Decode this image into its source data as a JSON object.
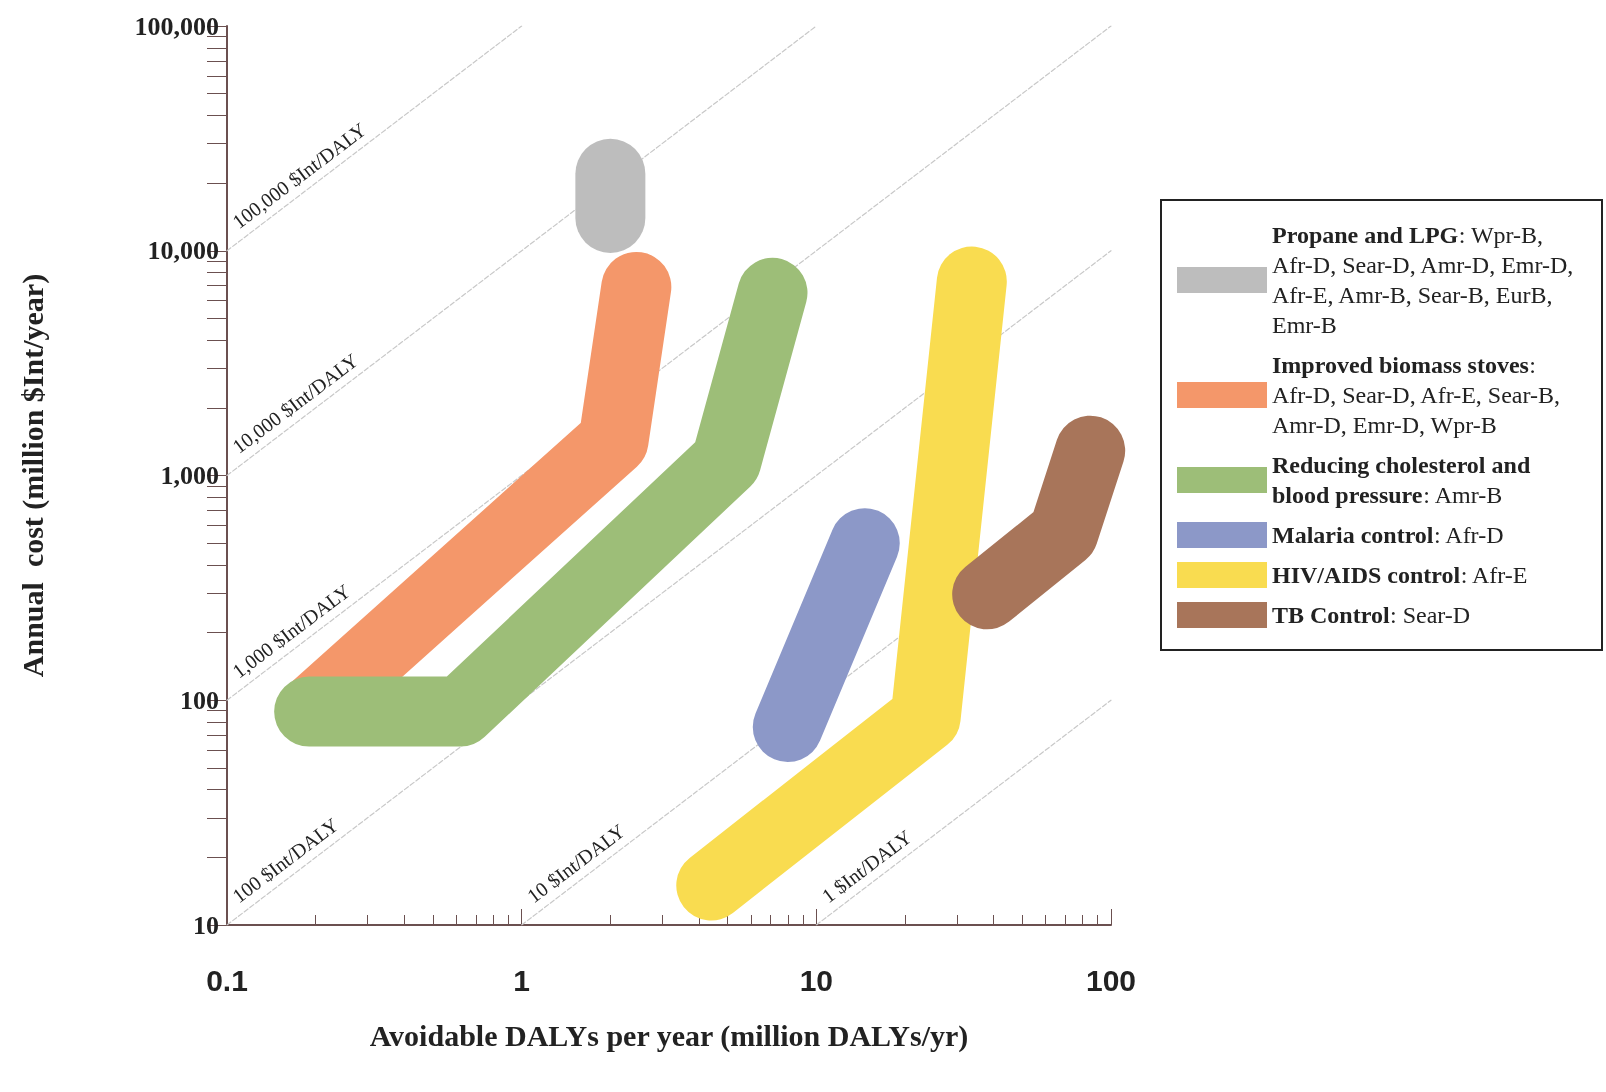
{
  "chart_data": {
    "type": "line",
    "xlabel": "Avoidable DALYs per year (million DALYs/yr)",
    "ylabel": "Annual  cost (million $Int/year)",
    "log": "xy",
    "grid": false,
    "legend": "right",
    "xlim": [
      0.1,
      100
    ],
    "xticks": [
      0.1,
      1,
      10,
      100
    ],
    "ylim": [
      10,
      100000
    ],
    "yticks": [
      10,
      100,
      {
        "value": 1000,
        "label": "1,000"
      },
      {
        "value": 10000,
        "label": "10,000"
      },
      {
        "value": 100000,
        "label": "100,000"
      }
    ],
    "series": [
      {
        "name": "100,000 $Int/DALY",
        "color": "#c8c8c8",
        "line_style": "dashed",
        "x": [
          0.1,
          1
        ],
        "values": [
          10000,
          100000
        ]
      },
      {
        "name": "10,000 $Int/DALY",
        "color": "#c8c8c8",
        "line_style": "dashed",
        "x": [
          0.1,
          10
        ],
        "values": [
          1000,
          100000
        ]
      },
      {
        "name": "1,000 $Int/DALY",
        "color": "#c8c8c8",
        "line_style": "dashed",
        "x": [
          0.1,
          100
        ],
        "values": [
          100,
          100000
        ]
      },
      {
        "name": "100 $Int/DALY",
        "color": "#c8c8c8",
        "line_style": "dashed",
        "x": [
          0.1,
          100
        ],
        "values": [
          10,
          10000
        ]
      },
      {
        "name": "10 $Int/DALY",
        "color": "#c8c8c8",
        "line_style": "dashed",
        "x": [
          1,
          100
        ],
        "values": [
          10,
          1000
        ]
      },
      {
        "name": "1 $Int/DALY",
        "color": "#c8c8c8",
        "line_style": "dashed",
        "x": [
          10,
          100
        ],
        "values": [
          10,
          100
        ]
      },
      {
        "name": "Propane and LPG: Wpr-B, Afr-D, Sear-D, Amr-D, Emr-D, Afr-E, Amr-B, Sear-B, EurB, Emr-B",
        "color": "#bdbdbd",
        "line_style": "solid",
        "x": [
          2,
          2
        ],
        "values": [
          14000,
          22000
        ]
      },
      {
        "name": "Improved biomass stoves: Afr-D, Sear-D, Afr-E, Sear-B, Amr-D, Emr-D, Wpr-B",
        "color": "#f4976a",
        "line_style": "solid",
        "x": [
          0.2,
          2.05,
          2.45
        ],
        "values": [
          93,
          1430,
          6900
        ]
      },
      {
        "name": "Reducing cholesterol and blood pressure: Amr-B",
        "color": "#9dbe78",
        "line_style": "solid",
        "x": [
          0.19,
          0.62,
          1.17,
          4.95,
          7.1
        ],
        "values": [
          89,
          89,
          195,
          1160,
          6500
        ]
      },
      {
        "name": "Malaria control: Afr-D",
        "color": "#8c98c8",
        "line_style": "solid",
        "x": [
          8,
          14.6
        ],
        "values": [
          76,
          500
        ]
      },
      {
        "name": "HIV/AIDS control: Afr-E",
        "color": "#f9dc50",
        "line_style": "solid",
        "x": [
          4.4,
          23.5,
          33.7
        ],
        "values": [
          15,
          84,
          7300
        ]
      },
      {
        "name": "TB Control: Sear-D",
        "color": "#a8755a",
        "line_style": "solid",
        "x": [
          38,
          69,
          85
        ],
        "values": [
          296,
          556,
          1290
        ]
      }
    ]
  }
}
